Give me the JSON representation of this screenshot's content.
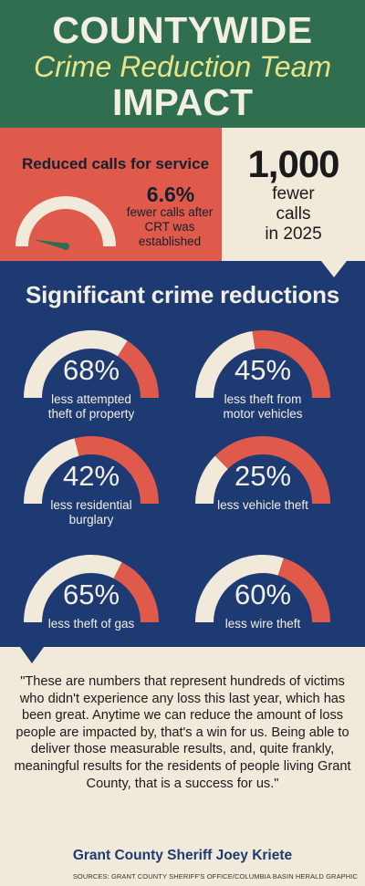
{
  "header": {
    "line1": "COUNTYWIDE",
    "line2": "Crime Reduction Team",
    "line3": "IMPACT"
  },
  "calls": {
    "title": "Reduced calls for service",
    "percent": "6.6%",
    "percent_value": 6.6,
    "description": "fewer calls after CRT was established",
    "big_number": "1,000",
    "big_desc_lines": [
      "fewer",
      "calls",
      "in 2025"
    ]
  },
  "crime": {
    "title": "Significant crime reductions",
    "items": [
      {
        "pct": "68%",
        "value": 68,
        "label_lines": [
          "less attempted",
          "theft of property"
        ]
      },
      {
        "pct": "45%",
        "value": 45,
        "label_lines": [
          "less theft from",
          "motor vehicles"
        ]
      },
      {
        "pct": "42%",
        "value": 42,
        "label_lines": [
          "less residential",
          "burglary"
        ]
      },
      {
        "pct": "25%",
        "value": 25,
        "label_lines": [
          "less vehicle theft"
        ]
      },
      {
        "pct": "65%",
        "value": 65,
        "label_lines": [
          "less theft of gas"
        ]
      },
      {
        "pct": "60%",
        "value": 60,
        "label_lines": [
          "less wire theft"
        ]
      }
    ]
  },
  "quote": {
    "text": "\"These are numbers that represent hundreds of victims who didn't experience any loss this last year, which has been great. Anytime we can reduce the amount of loss people are impacted by, that's a win for us. Being able to deliver those measurable results, and, quite frankly, meaningful results for the residents of people living Grant County, that is a success for us.\"",
    "attribution": "Grant County Sheriff Joey Kriete"
  },
  "source": "SOURCES: GRANT COUNTY SHERIFF'S OFFICE/COLUMBIA BASIN HERALD GRAPHIC",
  "colors": {
    "green": "#2f6e4e",
    "yellow": "#e8e28a",
    "red": "#df5a4a",
    "cream": "#f1eadb",
    "navy": "#1d3a73",
    "needle": "#2f6e4e"
  }
}
